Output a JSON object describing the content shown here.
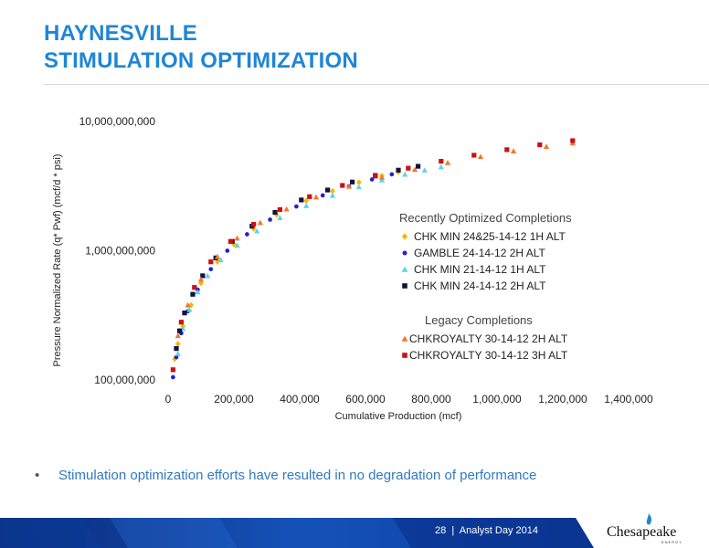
{
  "title": {
    "line1": "HAYNESVILLE",
    "line2": "STIMULATION OPTIMIZATION"
  },
  "chart_data": {
    "type": "scatter",
    "xlabel": "Cumulative Production (mcf)",
    "ylabel": "Pressure Normalized Rate (q* Pwf) (mcf/d * psi)",
    "xlim": [
      0,
      1400000
    ],
    "ylim": [
      100000000,
      10000000000
    ],
    "yscale": "log",
    "x_ticks": [
      0,
      200000,
      400000,
      600000,
      800000,
      1000000,
      1200000,
      1400000
    ],
    "x_tick_labels": [
      "0",
      "200,000",
      "400,000",
      "600,000",
      "800,000",
      "1,000,000",
      "1,200,000",
      "1,400,000"
    ],
    "y_ticks": [
      100000000,
      1000000000,
      10000000000
    ],
    "y_tick_labels": [
      "100,000,000",
      "1,000,000,000",
      "10,000,000,000"
    ],
    "grid": false,
    "legend_position": "right",
    "legend_groups": [
      {
        "title": "Recently Optimized Completions",
        "series": [
          0,
          1,
          2,
          3
        ]
      },
      {
        "title": "Legacy Completions",
        "series": [
          4,
          5
        ]
      }
    ],
    "series": [
      {
        "name": "CHK MIN 24&25-14-12 1H ALT",
        "marker": "diamond",
        "color": "#f5b800",
        "x": [
          20000,
          30000,
          45000,
          70000,
          100000,
          150000,
          200000,
          260000,
          330000,
          420000,
          500000,
          580000,
          650000,
          700000
        ],
        "y": [
          145000000,
          190000000,
          260000000,
          380000000,
          560000000,
          820000000,
          1120000000,
          1480000000,
          1900000000,
          2430000000,
          2900000000,
          3380000000,
          3800000000,
          4050000000
        ]
      },
      {
        "name": "GAMBLE 24-14-12 2H ALT",
        "marker": "circle",
        "color": "#2222cc",
        "x": [
          15000,
          25000,
          40000,
          60000,
          90000,
          130000,
          180000,
          240000,
          310000,
          390000,
          470000,
          550000,
          620000,
          680000
        ],
        "y": [
          105000000,
          150000000,
          230000000,
          340000000,
          500000000,
          720000000,
          1000000000,
          1340000000,
          1740000000,
          2200000000,
          2680000000,
          3150000000,
          3560000000,
          3900000000
        ]
      },
      {
        "name": "CHK MIN 21-14-12 1H ALT",
        "marker": "triangle",
        "color": "#5fd3e6",
        "x": [
          30000,
          45000,
          65000,
          90000,
          120000,
          160000,
          210000,
          270000,
          340000,
          420000,
          500000,
          580000,
          650000,
          720000,
          780000,
          830000
        ],
        "y": [
          160000000,
          250000000,
          350000000,
          480000000,
          640000000,
          850000000,
          1100000000,
          1420000000,
          1800000000,
          2230000000,
          2680000000,
          3120000000,
          3520000000,
          3900000000,
          4200000000,
          4450000000
        ]
      },
      {
        "name": "CHK MIN 24-14-12 2H ALT",
        "marker": "square",
        "color": "#111144",
        "x": [
          25000,
          35000,
          50000,
          75000,
          105000,
          145000,
          195000,
          255000,
          325000,
          405000,
          485000,
          560000,
          630000,
          700000,
          760000
        ],
        "y": [
          175000000,
          240000000,
          330000000,
          460000000,
          640000000,
          880000000,
          1180000000,
          1550000000,
          1980000000,
          2470000000,
          2950000000,
          3400000000,
          3820000000,
          4200000000,
          4500000000
        ]
      },
      {
        "name": "CHKROYALTY 30-14-12 2H ALT",
        "marker": "triangle",
        "color": "#f07830",
        "x": [
          30000,
          60000,
          100000,
          150000,
          210000,
          280000,
          360000,
          450000,
          550000,
          650000,
          750000,
          850000,
          950000,
          1050000,
          1150000,
          1230000
        ],
        "y": [
          220000000,
          380000000,
          600000000,
          900000000,
          1250000000,
          1650000000,
          2100000000,
          2600000000,
          3150000000,
          3700000000,
          4250000000,
          4800000000,
          5350000000,
          5900000000,
          6400000000,
          6800000000
        ]
      },
      {
        "name": "CHKROYALTY 30-14-12 3H ALT",
        "marker": "square",
        "color": "#cc1111",
        "x": [
          15000,
          40000,
          80000,
          130000,
          190000,
          260000,
          340000,
          430000,
          530000,
          630000,
          730000,
          830000,
          930000,
          1030000,
          1130000,
          1230000
        ],
        "y": [
          120000000,
          280000000,
          520000000,
          820000000,
          1180000000,
          1600000000,
          2080000000,
          2620000000,
          3200000000,
          3780000000,
          4350000000,
          4920000000,
          5480000000,
          6050000000,
          6600000000,
          7100000000
        ]
      }
    ]
  },
  "bullet": {
    "marker": "•",
    "text": "Stimulation optimization efforts have resulted in no degradation of performance"
  },
  "footer": {
    "page": "28",
    "separator": "|",
    "event": "Analyst Day 2014"
  },
  "logo": {
    "name": "Chesapeake",
    "sub": "ENERGY"
  }
}
